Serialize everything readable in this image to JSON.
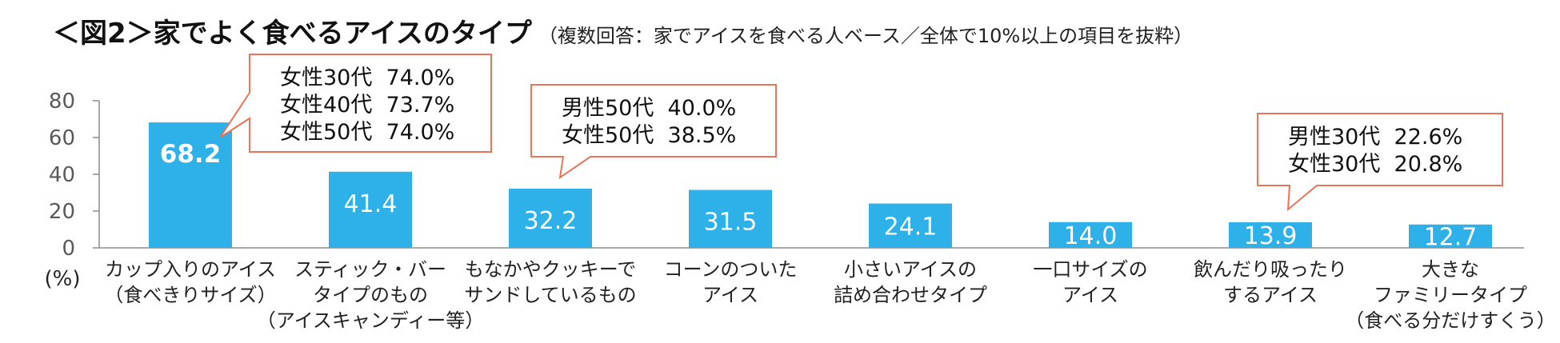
{
  "header": {
    "title": "＜図2＞家でよく食べるアイスのタイプ",
    "subtitle": "（複数回答：家でアイスを食べる人ベース／全体で10%以上の項目を抜粋）"
  },
  "chart_data": {
    "type": "bar",
    "ylabel": "(%)",
    "ylim": [
      0,
      80
    ],
    "yticks": [
      "0",
      "20",
      "40",
      "60",
      "80"
    ],
    "bar_color": "#2EB0E8",
    "callout_border_color": "#E8745A",
    "categories": [
      [
        "カップ入りのアイス",
        "（食べきりサイズ）"
      ],
      [
        "スティック・バー",
        "タイプのもの",
        "（アイスキャンディー等）"
      ],
      [
        "もなかやクッキーで",
        "サンドしているもの"
      ],
      [
        "コーンのついた",
        "アイス"
      ],
      [
        "小さいアイスの",
        "詰め合わせタイプ"
      ],
      [
        "一口サイズの",
        "アイス"
      ],
      [
        "飲んだり吸ったり",
        "するアイス"
      ],
      [
        "大きな",
        "ファミリータイプ",
        "（食べる分だけすくう）"
      ]
    ],
    "values": [
      68.2,
      41.4,
      32.2,
      31.5,
      24.1,
      14.0,
      13.9,
      12.7
    ],
    "value_labels": [
      "68.2",
      "41.4",
      "32.2",
      "31.5",
      "24.1",
      "14.0",
      "13.9",
      "12.7"
    ],
    "annotations": [
      {
        "bar": 0,
        "lines": [
          "女性30代  74.0%",
          "女性40代  73.7%",
          "女性50代  74.0%"
        ]
      },
      {
        "bar": 2,
        "lines": [
          "男性50代  40.0%",
          "女性50代  38.5%"
        ]
      },
      {
        "bar": 6,
        "lines": [
          "男性30代  22.6%",
          "女性30代  20.8%"
        ]
      }
    ]
  }
}
